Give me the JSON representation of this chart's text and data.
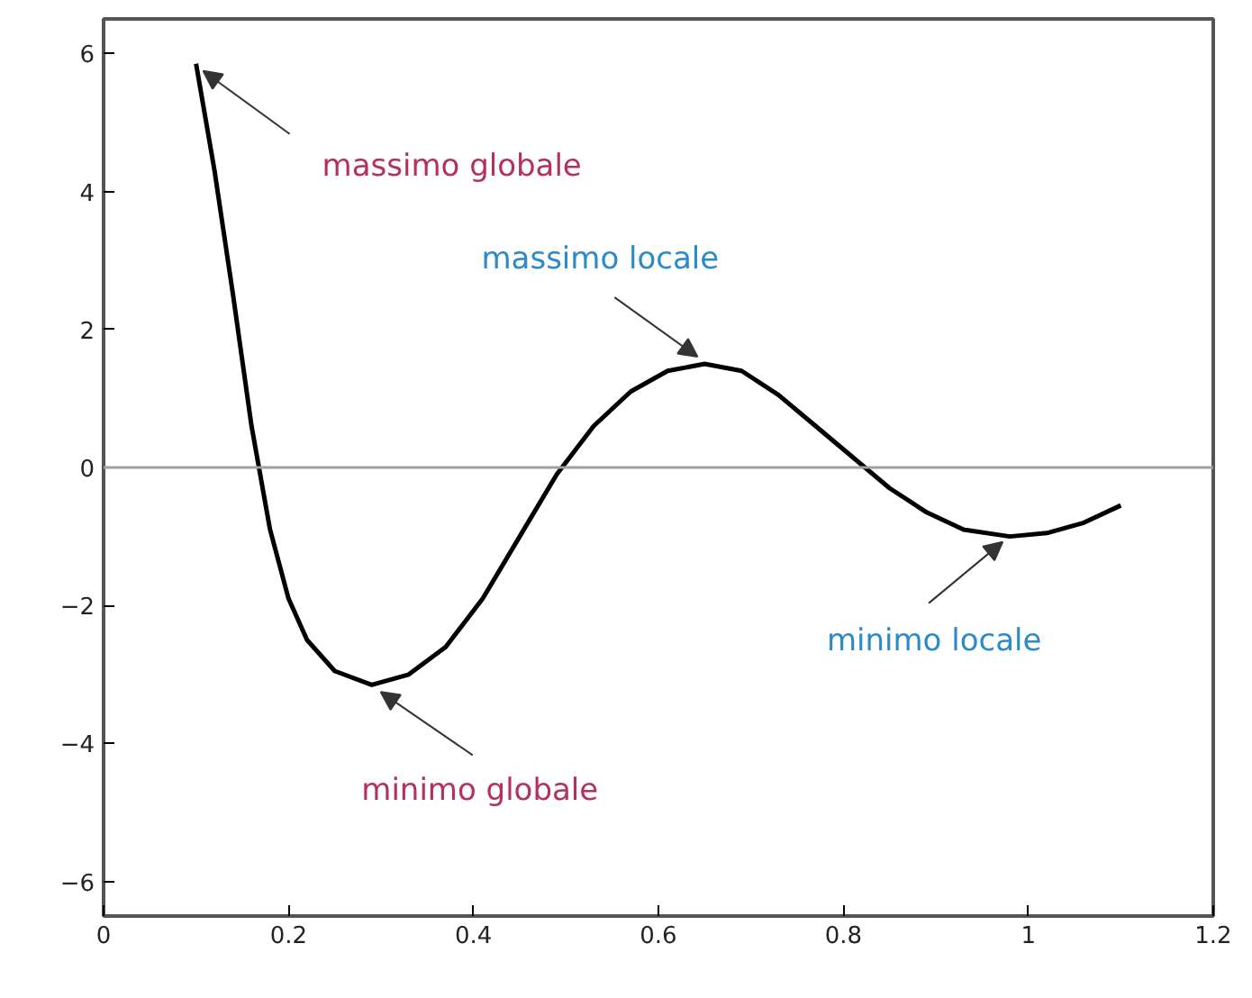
{
  "chart_data": {
    "type": "line",
    "x": [
      0.1,
      0.12,
      0.14,
      0.16,
      0.18,
      0.2,
      0.22,
      0.25,
      0.29,
      0.33,
      0.37,
      0.41,
      0.45,
      0.49,
      0.53,
      0.57,
      0.61,
      0.65,
      0.69,
      0.73,
      0.77,
      0.81,
      0.85,
      0.89,
      0.93,
      0.98,
      1.02,
      1.06,
      1.1
    ],
    "series": [
      {
        "color": "#000000",
        "values": [
          5.85,
          4.3,
          2.5,
          0.6,
          -0.9,
          -1.9,
          -2.5,
          -2.95,
          -3.15,
          -3.0,
          -2.6,
          -1.9,
          -1.0,
          -0.1,
          0.6,
          1.1,
          1.4,
          1.5,
          1.4,
          1.05,
          0.6,
          0.15,
          -0.3,
          -0.65,
          -0.9,
          -1.0,
          -0.95,
          -0.8,
          -0.55
        ]
      }
    ],
    "xlim": [
      0,
      1.2
    ],
    "ylim": [
      -6.5,
      6.5
    ],
    "xticks": [
      0,
      0.2,
      0.4,
      0.6,
      0.8,
      {
        "value": 1,
        "label": "1"
      },
      1.2
    ],
    "yticks": [
      {
        "value": -6,
        "label": "−6"
      },
      {
        "value": -4,
        "label": "−4"
      },
      {
        "value": -2,
        "label": "−2"
      },
      0,
      2,
      4,
      6
    ],
    "ref_lines": [
      {
        "axis": "y",
        "value": 0,
        "color": "#a0a0a0"
      }
    ],
    "annotations": [
      {
        "text": "massimo globale",
        "x": 0.1,
        "y": 5.85
      },
      {
        "text": "massimo locale",
        "x": 0.65,
        "y": 1.5
      },
      {
        "text": "minimo globale",
        "x": 0.29,
        "y": -3.15
      },
      {
        "text": "minimo locale",
        "x": 0.98,
        "y": -1.0
      }
    ],
    "grid": false,
    "marker": "none",
    "line_style": "solid"
  }
}
